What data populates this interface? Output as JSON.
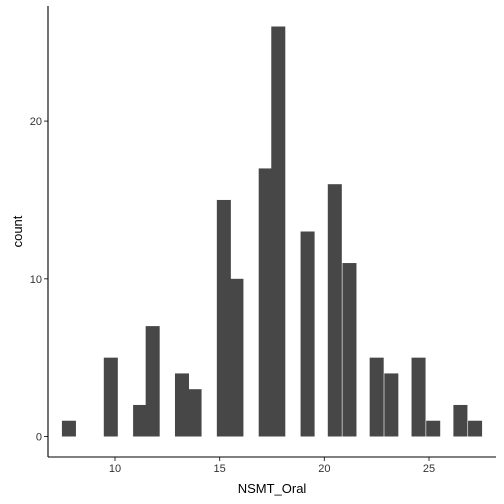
{
  "chart_data": {
    "type": "bar",
    "xlabel": "NSMT_Oral",
    "ylabel": "count",
    "xlim": [
      6.8,
      28.2
    ],
    "ylim": [
      -1.3,
      27.3
    ],
    "x_ticks": [
      10,
      15,
      20,
      25
    ],
    "y_ticks": [
      0,
      10,
      20
    ],
    "bin_width": 0.67,
    "bins": [
      {
        "x": 7.8,
        "count": 1
      },
      {
        "x": 8.5,
        "count": 0
      },
      {
        "x": 9.2,
        "count": 0
      },
      {
        "x": 9.8,
        "count": 5
      },
      {
        "x": 10.5,
        "count": 0
      },
      {
        "x": 11.2,
        "count": 2
      },
      {
        "x": 11.8,
        "count": 7
      },
      {
        "x": 12.5,
        "count": 0
      },
      {
        "x": 13.2,
        "count": 4
      },
      {
        "x": 13.8,
        "count": 3
      },
      {
        "x": 14.5,
        "count": 0
      },
      {
        "x": 15.2,
        "count": 15
      },
      {
        "x": 15.8,
        "count": 10
      },
      {
        "x": 16.5,
        "count": 0
      },
      {
        "x": 17.2,
        "count": 17
      },
      {
        "x": 17.8,
        "count": 26
      },
      {
        "x": 18.5,
        "count": 0
      },
      {
        "x": 19.2,
        "count": 13
      },
      {
        "x": 19.8,
        "count": 0
      },
      {
        "x": 20.5,
        "count": 16
      },
      {
        "x": 21.2,
        "count": 11
      },
      {
        "x": 21.8,
        "count": 0
      },
      {
        "x": 22.5,
        "count": 5
      },
      {
        "x": 23.2,
        "count": 4
      },
      {
        "x": 23.8,
        "count": 0
      },
      {
        "x": 24.5,
        "count": 5
      },
      {
        "x": 25.2,
        "count": 1
      },
      {
        "x": 25.8,
        "count": 0
      },
      {
        "x": 26.5,
        "count": 2
      },
      {
        "x": 27.2,
        "count": 1
      }
    ],
    "colors": {
      "bar": "#474747",
      "axis": "#000000",
      "background": "#ffffff"
    },
    "grid": false,
    "legend": "none"
  }
}
